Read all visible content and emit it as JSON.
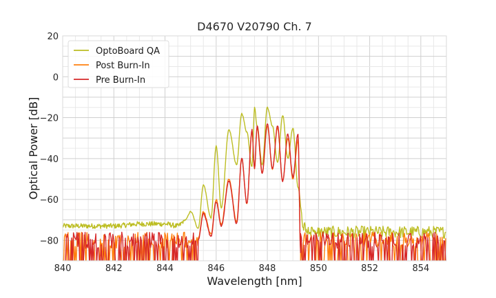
{
  "chart_data": {
    "type": "line",
    "title": "D4670 V20790 Ch. 7",
    "xlabel": "Wavelength [nm]",
    "ylabel": "Optical Power [dB]",
    "xlim": [
      840,
      855
    ],
    "ylim": [
      -90,
      20
    ],
    "xticks": [
      840,
      842,
      844,
      846,
      848,
      850,
      852,
      854
    ],
    "yticks": [
      20,
      0,
      -20,
      -40,
      -60,
      -80
    ],
    "ytick_labels": [
      "20",
      "0",
      "−20",
      "−40",
      "−60",
      "−80"
    ],
    "grid": true,
    "legend_position": "top-left",
    "noise_floor": {
      "mean": -80,
      "min": -90,
      "x_ranges": [
        [
          840,
          845.3
        ],
        [
          849.3,
          855
        ]
      ]
    },
    "series": [
      {
        "name": "OptoBoard QA",
        "color": "#bcbd22",
        "x": [
          840,
          841,
          842,
          843,
          843.5,
          844,
          844.5,
          844.8,
          845,
          845.3,
          845.5,
          845.8,
          846,
          846.2,
          846.5,
          846.8,
          847,
          847.2,
          847.4,
          847.5,
          847.6,
          847.8,
          848,
          848.2,
          848.4,
          848.6,
          848.8,
          849,
          849.2,
          849.4,
          849.6,
          850
        ],
        "y": [
          -73,
          -73,
          -73,
          -72,
          -72,
          -72,
          -73,
          -70,
          -66,
          -74,
          -53,
          -69,
          -34,
          -64,
          -26,
          -43,
          -18,
          -27,
          -44,
          -15,
          -24,
          -43,
          -15,
          -24,
          -42,
          -19,
          -40,
          -25,
          -54,
          -73,
          -75,
          -76
        ]
      },
      {
        "name": "Post Burn-In",
        "color": "#ff7f0e",
        "x": [
          845.3,
          845.5,
          845.8,
          846,
          846.2,
          846.5,
          846.8,
          847,
          847.2,
          847.4,
          847.5,
          847.6,
          847.8,
          848,
          848.2,
          848.4,
          848.6,
          848.8,
          849,
          849.2,
          849.3
        ],
        "y": [
          -79,
          -66,
          -77,
          -60,
          -72,
          -50,
          -71,
          -40,
          -62,
          -27,
          -45,
          -25,
          -47,
          -24,
          -45,
          -25,
          -51,
          -30,
          -50,
          -31,
          -85
        ]
      },
      {
        "name": "Pre Burn-In",
        "color": "#d62728",
        "x": [
          845.3,
          845.5,
          845.8,
          846,
          846.2,
          846.5,
          846.8,
          847,
          847.2,
          847.4,
          847.5,
          847.6,
          847.8,
          848,
          848.2,
          848.4,
          848.6,
          848.8,
          849,
          849.2,
          849.3
        ],
        "y": [
          -80,
          -67,
          -78,
          -61,
          -73,
          -51,
          -72,
          -40,
          -62,
          -26,
          -45,
          -24,
          -47,
          -23,
          -45,
          -24,
          -51,
          -28,
          -49,
          -28,
          -86
        ]
      }
    ]
  }
}
